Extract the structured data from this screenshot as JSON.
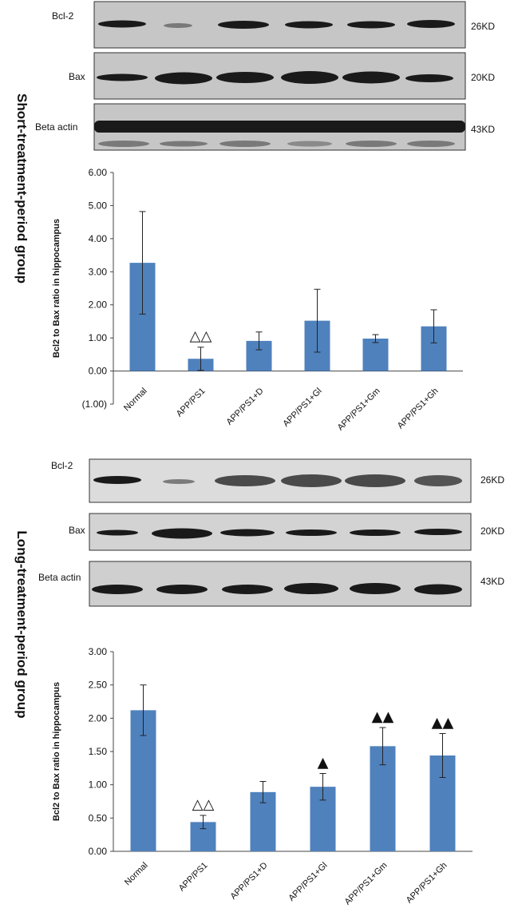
{
  "short_group": {
    "title": "Short-treatment-period group",
    "blots": [
      {
        "label": "Bcl-2",
        "kd": "26KD"
      },
      {
        "label": "Bax",
        "kd": "20KD"
      },
      {
        "label": "Beta actin",
        "kd": "43KD"
      }
    ]
  },
  "long_group": {
    "title": "Long-treatment-period group",
    "blots": [
      {
        "label": "Bcl-2",
        "kd": "26KD"
      },
      {
        "label": "Bax",
        "kd": "20KD"
      },
      {
        "label": "Beta actin",
        "kd": "43KD"
      }
    ]
  },
  "chart_data": [
    {
      "type": "bar",
      "categories": [
        "Normal",
        "APP/PS1",
        "APP/PS1+D",
        "APP/PS1+Gl",
        "APP/PS1+Gm",
        "APP/PS1+Gh"
      ],
      "values": [
        3.27,
        0.37,
        0.91,
        1.52,
        0.98,
        1.35
      ],
      "errors": [
        1.55,
        0.35,
        0.27,
        0.95,
        0.12,
        0.5
      ],
      "annotations": [
        "",
        "△△",
        "",
        "",
        "",
        ""
      ],
      "ylabel": "Bcl2 to Bax ratio in hippocampus",
      "ylim": [
        -1,
        6
      ],
      "yticks": [
        "(1.00)",
        "0.00",
        "1.00",
        "2.00",
        "3.00",
        "4.00",
        "5.00",
        "6.00"
      ],
      "negative_tick_color": "#ff0000",
      "bar_color": "#4f81bd",
      "grid": false
    },
    {
      "type": "bar",
      "categories": [
        "Normal",
        "APP/PS1",
        "APP/PS1+D",
        "APP/PS1+Gl",
        "APP/PS1+Gm",
        "APP/PS1+Gh"
      ],
      "values": [
        2.12,
        0.44,
        0.89,
        0.97,
        1.58,
        1.44
      ],
      "errors": [
        0.38,
        0.1,
        0.16,
        0.2,
        0.28,
        0.33
      ],
      "annotations": [
        "",
        "△△",
        "",
        "▲",
        "▲▲",
        "▲▲"
      ],
      "ylabel": "Bcl2 to Bax ratio in hippocampus",
      "ylim": [
        0,
        3
      ],
      "yticks": [
        "0.00",
        "0.50",
        "1.00",
        "1.50",
        "2.00",
        "2.50",
        "3.00"
      ],
      "bar_color": "#4f81bd",
      "grid": false
    }
  ]
}
